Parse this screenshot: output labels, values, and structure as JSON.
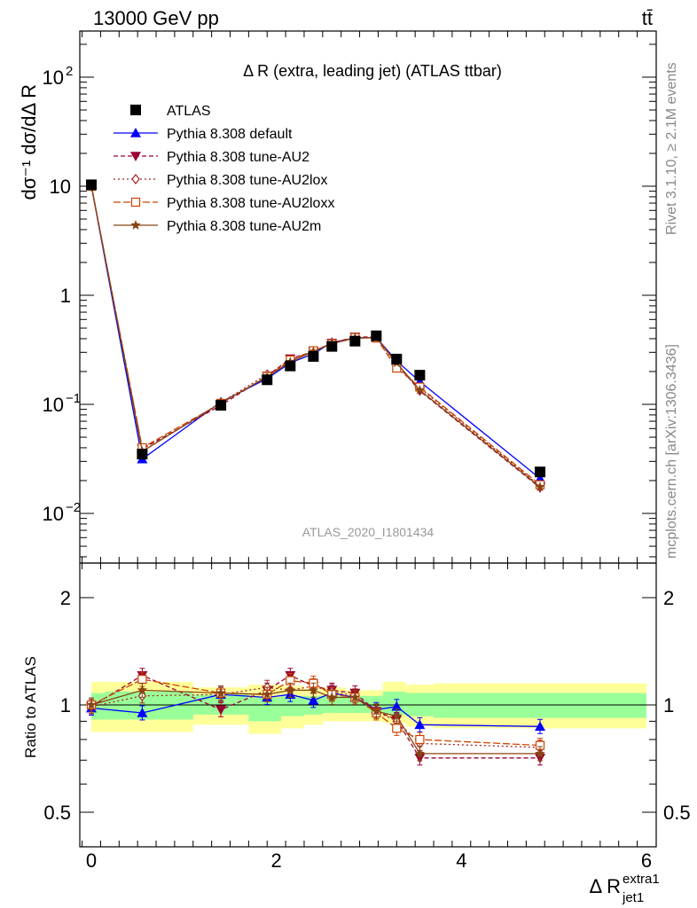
{
  "header": {
    "left": "13000 GeV pp",
    "right": "tt̄"
  },
  "chart_data": {
    "type": "line",
    "title": "Δ R (extra, leading jet) (ATLAS ttbar)",
    "analysis_id": "ATLAS_2020_I1801434",
    "side_labels": {
      "rivet": "Rivet 3.1.10, ≥ 2.1M events",
      "mcplots": "mcplots.cern.ch [arXiv:1306.3436]"
    },
    "ylabel_main": "dσ⁻¹ dσ/dΔ R",
    "ylabel_ratio": "Ratio to ATLAS",
    "xlabel": "Δ R",
    "xlabel_sup": "extra1",
    "xlabel_sub": "jet1",
    "main_y_scale": "log",
    "main_ylim": [
      0.003,
      300
    ],
    "main_y_ticks": [
      {
        "v": 0.01,
        "base": "10",
        "exp": "−2"
      },
      {
        "v": 0.1,
        "base": "10",
        "exp": "−1"
      },
      {
        "v": 1,
        "base": "1",
        "exp": ""
      },
      {
        "v": 10,
        "base": "10",
        "exp": ""
      },
      {
        "v": 100,
        "base": "10",
        "exp": "2"
      }
    ],
    "ratio_ylim": [
      0.35,
      2.35
    ],
    "ratio_y_ticks": [
      "0.5",
      "1",
      "2"
    ],
    "xlim": [
      -0.15,
      6.15
    ],
    "x_ticks": [
      "0",
      "2",
      "4",
      "6"
    ],
    "x": [
      0.0,
      0.55,
      1.4,
      1.9,
      2.15,
      2.4,
      2.6,
      2.85,
      3.08,
      3.3,
      3.55,
      4.85
    ],
    "band_bins": [
      {
        "x0": 0.0,
        "x1": 0.15,
        "g": [
          0.91,
          1.08
        ],
        "y": [
          0.84,
          1.16
        ]
      },
      {
        "x0": 0.15,
        "x1": 1.1,
        "g": [
          0.91,
          1.09
        ],
        "y": [
          0.84,
          1.16
        ]
      },
      {
        "x0": 1.1,
        "x1": 1.7,
        "g": [
          0.94,
          1.07
        ],
        "y": [
          0.88,
          1.12
        ]
      },
      {
        "x0": 1.7,
        "x1": 2.05,
        "g": [
          0.9,
          1.05
        ],
        "y": [
          0.83,
          1.14
        ]
      },
      {
        "x0": 2.05,
        "x1": 2.3,
        "g": [
          0.93,
          1.06
        ],
        "y": [
          0.86,
          1.13
        ]
      },
      {
        "x0": 2.3,
        "x1": 2.5,
        "g": [
          0.94,
          1.06
        ],
        "y": [
          0.88,
          1.11
        ]
      },
      {
        "x0": 2.5,
        "x1": 2.75,
        "g": [
          0.95,
          1.06
        ],
        "y": [
          0.9,
          1.12
        ]
      },
      {
        "x0": 2.75,
        "x1": 3.15,
        "g": [
          0.95,
          1.06
        ],
        "y": [
          0.9,
          1.1
        ]
      },
      {
        "x0": 3.15,
        "x1": 3.4,
        "g": [
          0.94,
          1.09
        ],
        "y": [
          0.89,
          1.16
        ]
      },
      {
        "x0": 3.4,
        "x1": 3.7,
        "g": [
          0.93,
          1.08
        ],
        "y": [
          0.87,
          1.14
        ]
      },
      {
        "x0": 3.7,
        "x1": 6.0,
        "g": [
          0.92,
          1.08
        ],
        "y": [
          0.86,
          1.15
        ]
      }
    ],
    "series": [
      {
        "name": "ATLAS",
        "color": "#000000",
        "marker": "square",
        "dash": "",
        "values": [
          10.3,
          0.035,
          0.098,
          0.168,
          0.225,
          0.275,
          0.34,
          0.38,
          0.425,
          0.26,
          0.185,
          0.024
        ],
        "ratio": [
          1,
          1,
          1,
          1,
          1,
          1,
          1,
          1,
          1,
          1,
          1,
          1
        ]
      },
      {
        "name": "Pythia 8.308 default",
        "color": "#0000ff",
        "marker": "triangle-up",
        "dash": "",
        "values": [
          10.1,
          0.0315,
          0.105,
          0.172,
          0.24,
          0.29,
          0.37,
          0.405,
          0.41,
          0.25,
          0.162,
          0.0209
        ],
        "ratio": [
          0.98,
          0.95,
          1.07,
          1.05,
          1.07,
          1.03,
          1.08,
          1.05,
          0.97,
          0.99,
          0.88,
          0.87
        ]
      },
      {
        "name": "Pythia 8.308 tune-AU2",
        "color": "#990033",
        "marker": "triangle-down",
        "dash": "5,3",
        "values": [
          10.0,
          0.039,
          0.098,
          0.182,
          0.262,
          0.305,
          0.365,
          0.415,
          0.415,
          0.235,
          0.133,
          0.0172
        ],
        "ratio": [
          0.99,
          1.21,
          0.97,
          1.1,
          1.21,
          1.13,
          1.1,
          1.08,
          0.96,
          0.91,
          0.71,
          0.71
        ]
      },
      {
        "name": "Pythia 8.308 tune-AU2lox",
        "color": "#aa2222",
        "marker": "diamond-open",
        "dash": "2,3",
        "values": [
          10.1,
          0.037,
          0.104,
          0.188,
          0.248,
          0.305,
          0.365,
          0.405,
          0.41,
          0.232,
          0.141,
          0.0178
        ],
        "ratio": [
          0.99,
          1.06,
          1.07,
          1.12,
          1.1,
          1.13,
          1.09,
          1.06,
          0.96,
          0.9,
          0.78,
          0.76
        ]
      },
      {
        "name": "Pythia 8.308 tune-AU2loxx",
        "color": "#cc4400",
        "marker": "square-open",
        "dash": "8,3",
        "values": [
          10.0,
          0.04,
          0.102,
          0.18,
          0.255,
          0.31,
          0.36,
          0.41,
          0.405,
          0.215,
          0.144,
          0.0183
        ],
        "ratio": [
          1.0,
          1.18,
          1.08,
          1.07,
          1.17,
          1.15,
          1.07,
          1.05,
          0.95,
          0.86,
          0.8,
          0.77
        ]
      },
      {
        "name": "Pythia 8.308 tune-AU2m",
        "color": "#884411",
        "marker": "star",
        "dash": "",
        "values": [
          10.2,
          0.037,
          0.103,
          0.178,
          0.245,
          0.305,
          0.36,
          0.405,
          0.41,
          0.24,
          0.135,
          0.0175
        ],
        "ratio": [
          1.0,
          1.1,
          1.08,
          1.07,
          1.1,
          1.1,
          1.05,
          1.05,
          0.96,
          0.93,
          0.73,
          0.73
        ]
      }
    ]
  }
}
